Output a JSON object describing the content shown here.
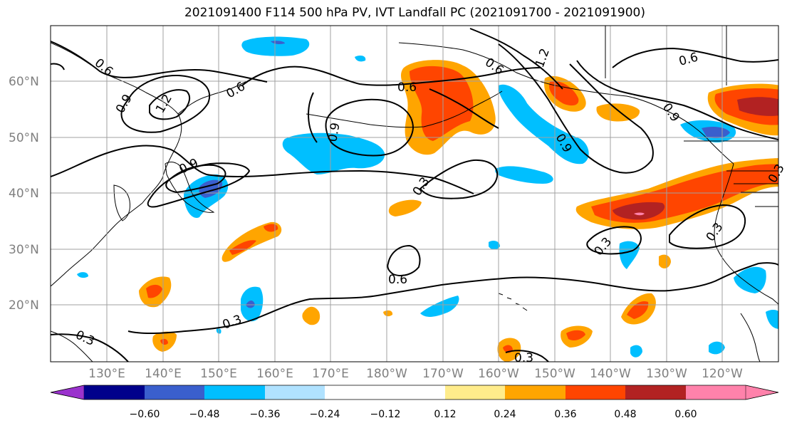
{
  "title": "2021091400 F114 500 hPa PV, IVT Landfall PC (2021091700 - 2021091900)",
  "lat_labels": [
    "60°N",
    "50°N",
    "40°N",
    "30°N",
    "20°N"
  ],
  "lon_labels": [
    "130°E",
    "140°E",
    "150°E",
    "160°E",
    "170°E",
    "180°W",
    "170°W",
    "160°W",
    "150°W",
    "140°W",
    "130°W",
    "120°W"
  ],
  "contour_labels": [
    "0.6",
    "0.9",
    "1.2",
    "0.6",
    "0.6",
    "0.9",
    "0.9",
    "0.6",
    "1.2",
    "0.9",
    "0.6",
    "0.9",
    "0.3",
    "0.3",
    "0.6",
    "0.3",
    "0.3",
    "0.3",
    "0.3",
    "0.3"
  ],
  "colorbar": {
    "colors": [
      "#9a32cd",
      "#00008b",
      "#3a5fcd",
      "#00bfff",
      "#b0e2ff",
      "#ffffff",
      "#ffec8b",
      "#ffa500",
      "#ff4500",
      "#b22222",
      "#ff82ab"
    ],
    "ticks": [
      "−0.60",
      "−0.48",
      "−0.36",
      "−0.24",
      "−0.12",
      "0.12",
      "0.24",
      "0.36",
      "0.48",
      "0.60"
    ]
  }
}
